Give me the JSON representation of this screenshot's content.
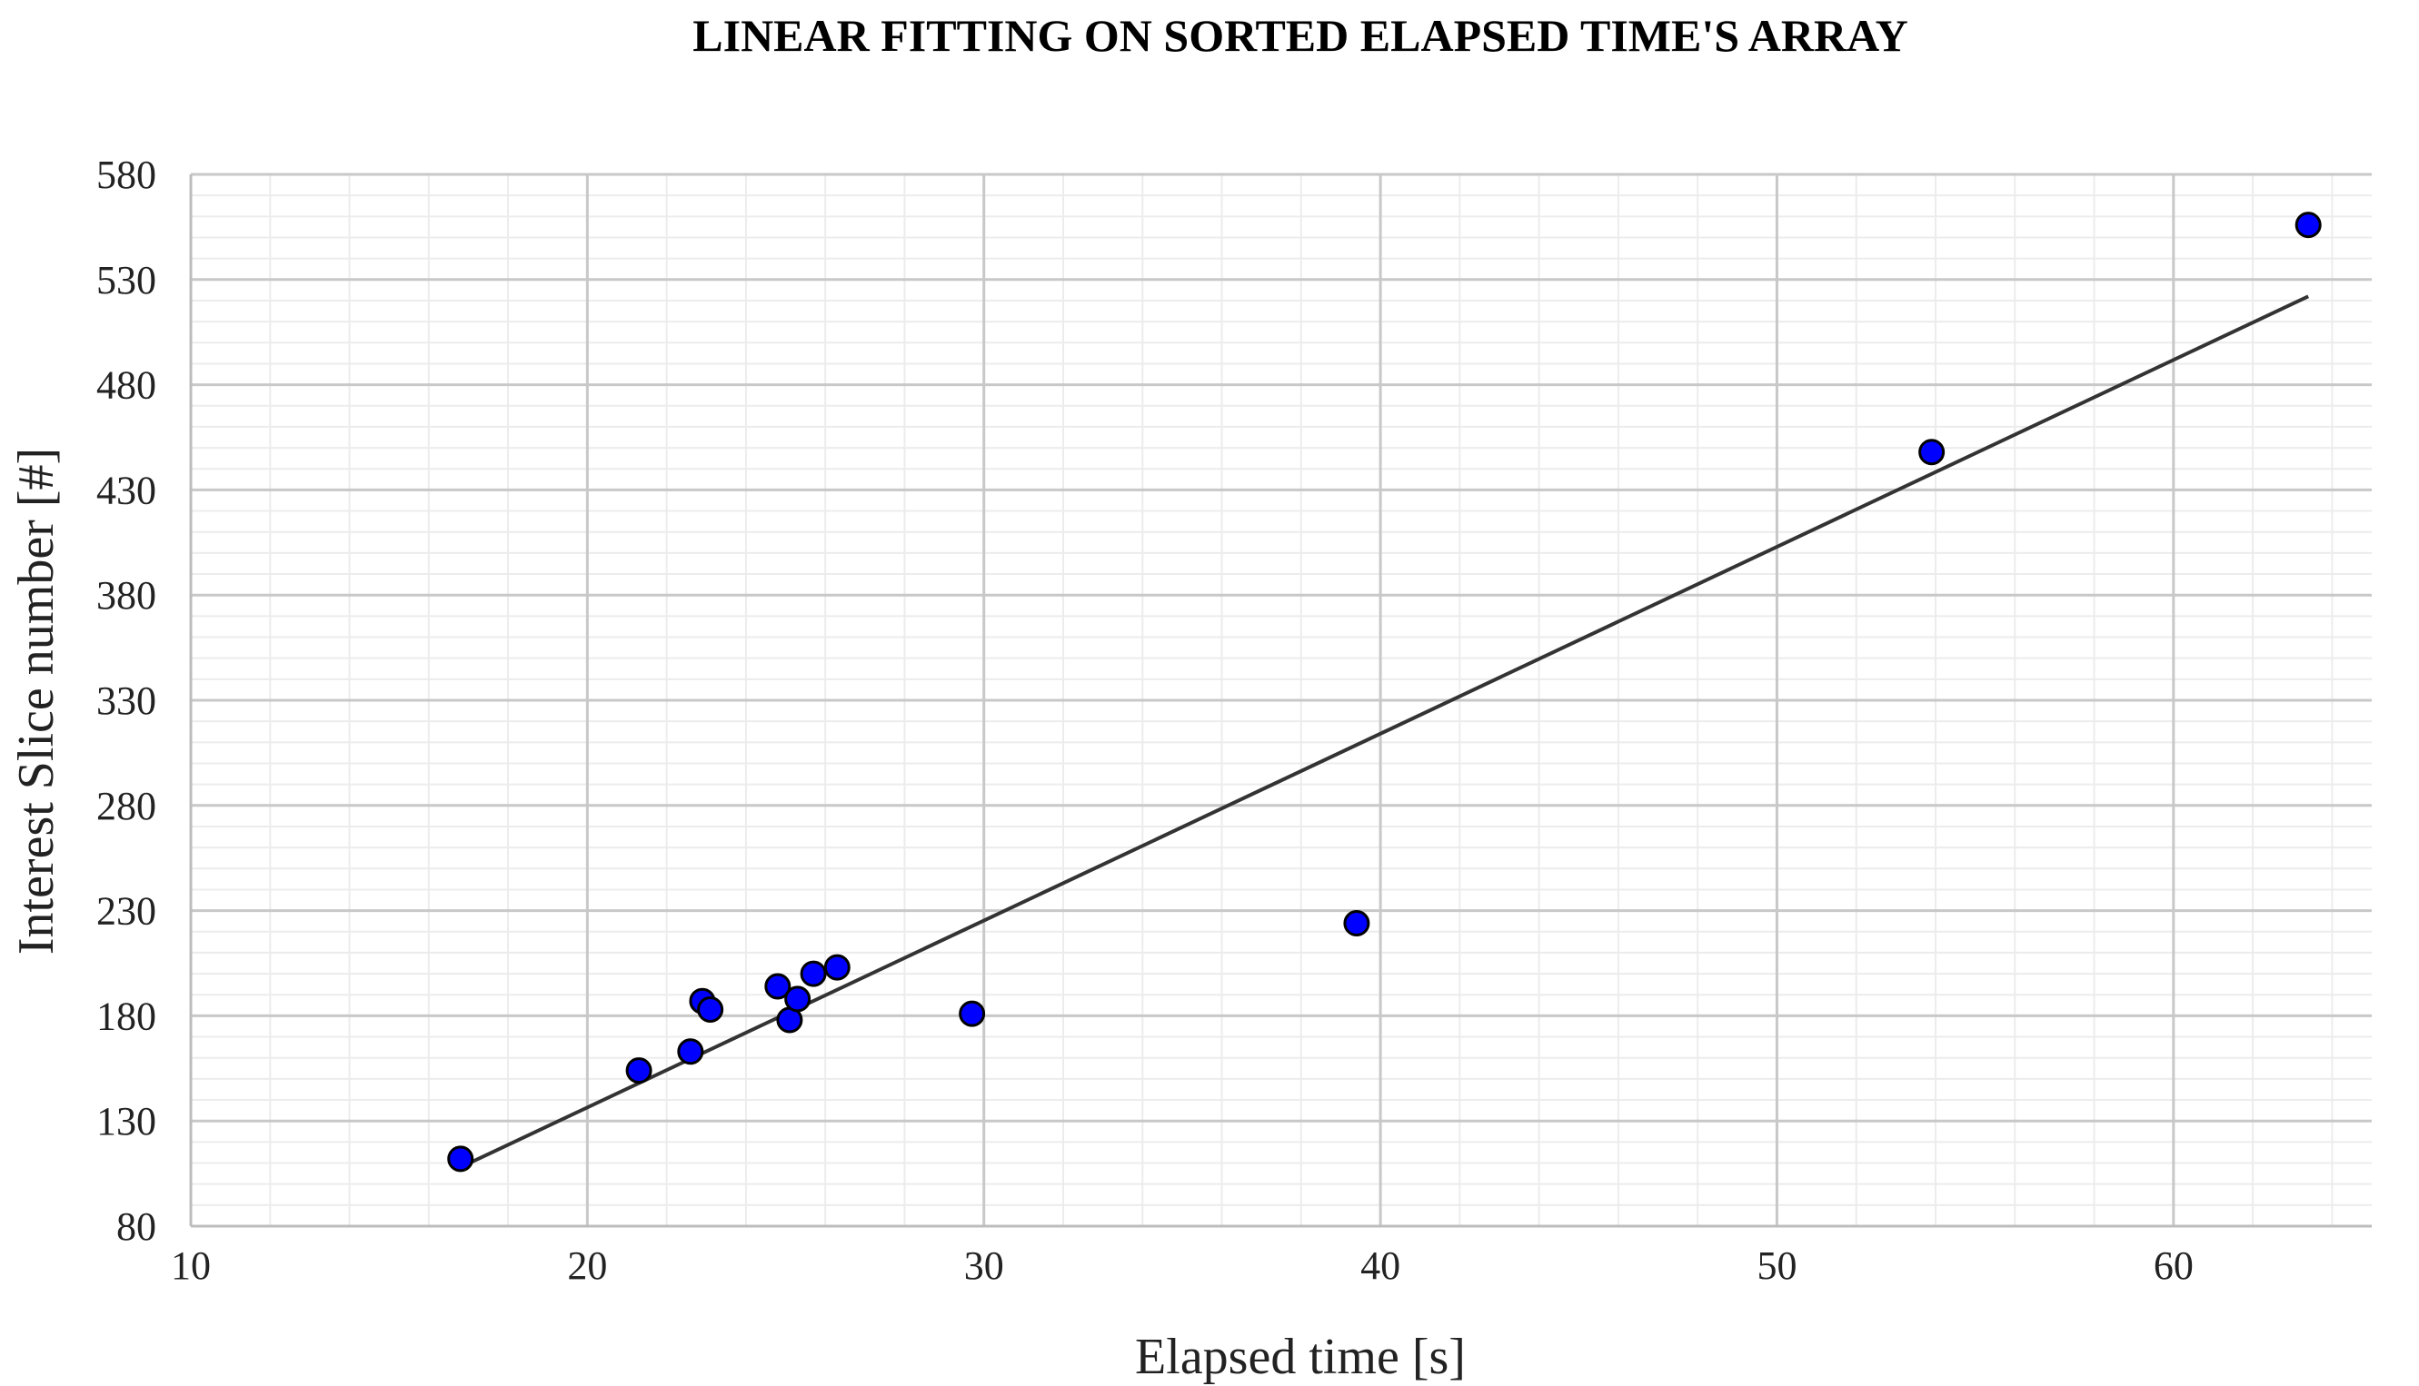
{
  "chart_data": {
    "type": "scatter",
    "title": "LINEAR FITTING ON SORTED ELAPSED TIME'S ARRAY",
    "xlabel": "Elapsed time [s]",
    "ylabel": "Interest Slice number [#]",
    "xlim": [
      10,
      65
    ],
    "ylim": [
      80,
      580
    ],
    "xticks": [
      10,
      20,
      30,
      40,
      50,
      60
    ],
    "yticks": [
      80,
      130,
      180,
      230,
      280,
      330,
      380,
      430,
      480,
      530,
      580
    ],
    "grid": true,
    "series": [
      {
        "marker_color": "#0000ff",
        "points": [
          {
            "x": 16.8,
            "y": 112
          },
          {
            "x": 21.3,
            "y": 154
          },
          {
            "x": 22.6,
            "y": 163
          },
          {
            "x": 22.9,
            "y": 187
          },
          {
            "x": 23.1,
            "y": 183
          },
          {
            "x": 24.8,
            "y": 194
          },
          {
            "x": 25.1,
            "y": 178
          },
          {
            "x": 25.3,
            "y": 188
          },
          {
            "x": 25.7,
            "y": 200
          },
          {
            "x": 26.3,
            "y": 203
          },
          {
            "x": 29.7,
            "y": 181
          },
          {
            "x": 39.4,
            "y": 224
          },
          {
            "x": 53.9,
            "y": 448
          },
          {
            "x": 63.4,
            "y": 556
          }
        ]
      }
    ],
    "trendline": {
      "x": [
        16.8,
        63.4
      ],
      "y": [
        108,
        522
      ],
      "color": "#333333"
    }
  }
}
